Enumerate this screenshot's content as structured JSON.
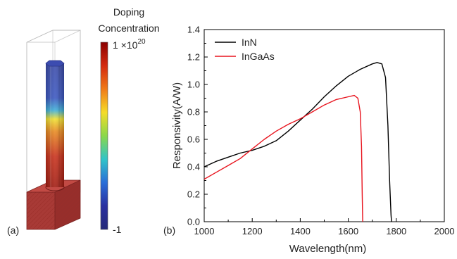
{
  "panel_a": {
    "label": "(a)",
    "colorbar": {
      "title_line1": "Doping",
      "title_line2": "Concentration",
      "max_label_base": "1 ×10",
      "max_label_exp": "20",
      "min_label": "-1",
      "colors": [
        "#8b0000",
        "#d42a10",
        "#f07a18",
        "#f5dc28",
        "#8ad84a",
        "#31c4c8",
        "#2a6ed8",
        "#2a30a0",
        "#262a78"
      ]
    },
    "structure_colors": {
      "wire_top": "#3a4aa8",
      "wire_mid_warm": "#e88a20",
      "wire_bottom": "#a01a10",
      "substrate": "#a83a36",
      "outline": "#b0b0b0"
    }
  },
  "panel_b": {
    "label": "(b)"
  },
  "chart_data": {
    "type": "line",
    "title": "",
    "xlabel": "Wavelength(nm)",
    "ylabel": "Responsivity(A/W)",
    "xlim": [
      1000,
      2000
    ],
    "ylim": [
      0.0,
      1.4
    ],
    "xticks": [
      "1000",
      "1200",
      "1400",
      "1600",
      "1800",
      "2000"
    ],
    "yticks": [
      "0.0",
      "0.2",
      "0.4",
      "0.6",
      "0.8",
      "1.0",
      "1.2",
      "1.4"
    ],
    "legend_position": "top-left",
    "series": [
      {
        "name": "InN",
        "color": "#000000",
        "x": [
          1000,
          1050,
          1100,
          1150,
          1200,
          1250,
          1300,
          1350,
          1400,
          1450,
          1500,
          1550,
          1600,
          1650,
          1700,
          1720,
          1740,
          1755,
          1765,
          1772,
          1778,
          1780
        ],
        "y": [
          0.4,
          0.44,
          0.47,
          0.5,
          0.52,
          0.55,
          0.59,
          0.66,
          0.74,
          0.82,
          0.91,
          0.99,
          1.06,
          1.11,
          1.15,
          1.16,
          1.15,
          1.05,
          0.7,
          0.3,
          0.05,
          0.0
        ]
      },
      {
        "name": "InGaAs",
        "color": "#e8141e",
        "x": [
          1000,
          1050,
          1100,
          1150,
          1200,
          1250,
          1300,
          1350,
          1400,
          1450,
          1500,
          1550,
          1600,
          1625,
          1640,
          1650,
          1655,
          1658,
          1660
        ],
        "y": [
          0.31,
          0.36,
          0.41,
          0.46,
          0.53,
          0.6,
          0.66,
          0.71,
          0.75,
          0.8,
          0.85,
          0.89,
          0.91,
          0.92,
          0.9,
          0.8,
          0.55,
          0.2,
          0.0
        ]
      }
    ]
  }
}
